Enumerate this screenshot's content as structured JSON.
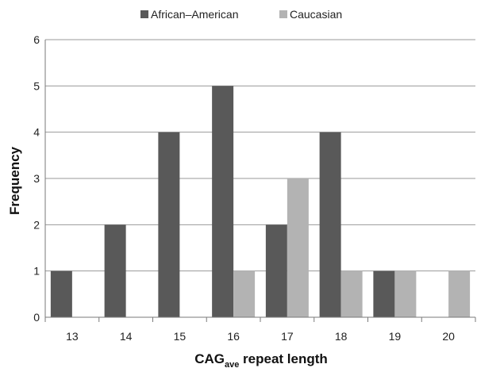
{
  "chart_data": {
    "type": "bar",
    "categories": [
      "13",
      "14",
      "15",
      "16",
      "17",
      "18",
      "19",
      "20"
    ],
    "series": [
      {
        "name": "African–American",
        "values": [
          1,
          2,
          4,
          5,
          2,
          4,
          1,
          0
        ],
        "color": "#595959"
      },
      {
        "name": "Caucasian",
        "values": [
          0,
          0,
          0,
          1,
          3,
          1,
          1,
          1
        ],
        "color": "#b3b3b3"
      }
    ],
    "xlabel": {
      "main": "CAG",
      "subscript": "ave",
      "rest": " repeat length"
    },
    "ylabel": "Frequency",
    "ylim": [
      0,
      6
    ],
    "yticks": [
      0,
      1,
      2,
      3,
      4,
      5,
      6
    ],
    "grid": true,
    "legend_position": "top-center"
  }
}
